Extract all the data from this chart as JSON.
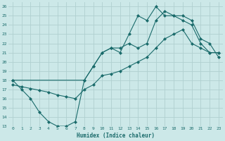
{
  "xlabel": "Humidex (Indice chaleur)",
  "bg_color": "#cce8e8",
  "line_color": "#1a6b6b",
  "grid_color": "#b0d0d0",
  "xlim": [
    -0.5,
    23.5
  ],
  "ylim": [
    13,
    26.5
  ],
  "xticks": [
    0,
    1,
    2,
    3,
    4,
    5,
    6,
    7,
    8,
    9,
    10,
    11,
    12,
    13,
    14,
    15,
    16,
    17,
    18,
    19,
    20,
    21,
    22,
    23
  ],
  "yticks": [
    13,
    14,
    15,
    16,
    17,
    18,
    19,
    20,
    21,
    22,
    23,
    24,
    25,
    26
  ],
  "line1_x": [
    0,
    1,
    2,
    3,
    4,
    5,
    6,
    7,
    8,
    9,
    10,
    11,
    12,
    13,
    14,
    15,
    16,
    17,
    18,
    19,
    20,
    21,
    22,
    23
  ],
  "line1_y": [
    18,
    17,
    16,
    14.5,
    13.5,
    13.0,
    13.0,
    13.5,
    18.0,
    19.5,
    21.0,
    21.5,
    21.0,
    23.0,
    25.0,
    24.5,
    26.0,
    25.0,
    25.0,
    24.5,
    24.0,
    22.0,
    21.0,
    21.0
  ],
  "line2_x": [
    0,
    8,
    9,
    10,
    11,
    12,
    13,
    14,
    15,
    16,
    17,
    18,
    19,
    20,
    21,
    22,
    23
  ],
  "line2_y": [
    18,
    18.0,
    19.5,
    21.0,
    21.5,
    21.5,
    22.0,
    21.5,
    22.0,
    24.5,
    25.5,
    25.0,
    25.0,
    24.5,
    22.5,
    22.0,
    20.5
  ],
  "line3_x": [
    0,
    1,
    2,
    3,
    4,
    5,
    6,
    7,
    8,
    9,
    10,
    11,
    12,
    13,
    14,
    15,
    16,
    17,
    18,
    19,
    20,
    21,
    22,
    23
  ],
  "line3_y": [
    17.5,
    17.3,
    17.1,
    16.9,
    16.7,
    16.4,
    16.2,
    16.0,
    17.0,
    17.5,
    18.5,
    18.7,
    19.0,
    19.5,
    20.0,
    20.5,
    21.5,
    22.5,
    23.0,
    23.5,
    22.0,
    21.5,
    21.0,
    21.0
  ]
}
